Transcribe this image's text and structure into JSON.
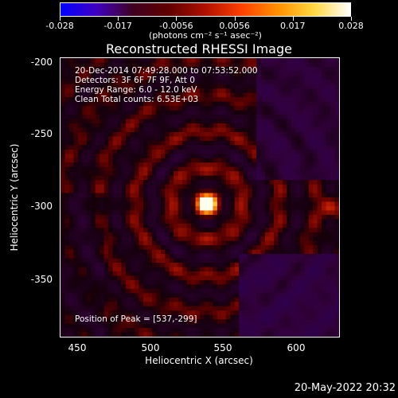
{
  "colorbar": {
    "tick_labels": [
      "-0.028",
      "-0.017",
      "-0.0056",
      "0.0056",
      "0.017",
      "0.028"
    ],
    "units": "(photons cm⁻² s⁻¹ asec⁻²)",
    "colors": [
      "#0000ff",
      "#4000c0",
      "#400020",
      "#600000",
      "#b01000",
      "#ff4000",
      "#ff9000",
      "#ffd840",
      "#ffffff"
    ]
  },
  "title": "Reconstructed RHESSI Image",
  "info": {
    "time_range": "20-Dec-2014 07:49:28.000 to 07:53:52.000",
    "detectors": "Detectors: 3F 6F 7F 9F, Att 0",
    "energy": "Energy Range: 6.0 - 12.0 keV",
    "clean": "Clean    Total counts: 6.53E+03",
    "peak": "Position of Peak = [537,-299]"
  },
  "axes": {
    "xlabel": "Heliocentric X (arcsec)",
    "ylabel": "Heliocentric Y (arcsec)",
    "xticks": [
      "450",
      "500",
      "550",
      "600"
    ],
    "yticks": [
      "-200",
      "-250",
      "-300",
      "-350"
    ]
  },
  "chart_data": {
    "type": "heatmap",
    "x_range": [
      437,
      630
    ],
    "y_range": [
      -395,
      -197
    ],
    "peak": [
      537,
      -299
    ]
  },
  "timestamp": "20-May-2022 20:32"
}
